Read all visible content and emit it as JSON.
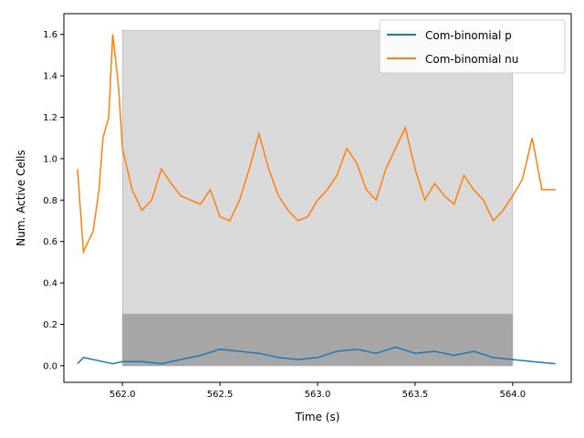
{
  "chart_data": {
    "type": "line",
    "xlabel": "Time (s)",
    "ylabel": "Num. Active Cells",
    "xlim": [
      561.7,
      564.3
    ],
    "ylim": [
      -0.08,
      1.7
    ],
    "xticks": [
      "562.0",
      "562.5",
      "563.0",
      "563.5",
      "564.0"
    ],
    "xtick_values": [
      562.0,
      562.5,
      563.0,
      563.5,
      564.0
    ],
    "yticks": [
      "0.0",
      "0.2",
      "0.4",
      "0.6",
      "0.8",
      "1.0",
      "1.2",
      "1.4",
      "1.6"
    ],
    "ytick_values": [
      0.0,
      0.2,
      0.4,
      0.6,
      0.8,
      1.0,
      1.2,
      1.4,
      1.6
    ],
    "grid": false,
    "legend_position": "top-right",
    "shaded_regions": [
      {
        "x": [
          562.0,
          564.0
        ],
        "y": [
          0.0,
          1.62
        ],
        "color": "#d9d9d9"
      },
      {
        "x": [
          562.0,
          564.0
        ],
        "y": [
          0.0,
          0.25
        ],
        "color": "#a6a6a6"
      }
    ],
    "series": [
      {
        "name": "Com-binomial p",
        "color": "#1f77b4",
        "x": [
          561.77,
          561.8,
          561.85,
          561.9,
          561.95,
          562.0,
          562.1,
          562.2,
          562.3,
          562.4,
          562.5,
          562.6,
          562.7,
          562.8,
          562.9,
          563.0,
          563.1,
          563.2,
          563.3,
          563.4,
          563.5,
          563.6,
          563.7,
          563.8,
          563.9,
          564.0,
          564.1,
          564.22
        ],
        "y": [
          0.01,
          0.04,
          0.03,
          0.02,
          0.01,
          0.02,
          0.02,
          0.01,
          0.03,
          0.05,
          0.08,
          0.07,
          0.06,
          0.04,
          0.03,
          0.04,
          0.07,
          0.08,
          0.06,
          0.09,
          0.06,
          0.07,
          0.05,
          0.07,
          0.04,
          0.03,
          0.02,
          0.01
        ]
      },
      {
        "name": "Com-binomial nu",
        "color": "#ff7f0e",
        "x": [
          561.77,
          561.8,
          561.85,
          561.88,
          561.9,
          561.93,
          561.95,
          561.98,
          562.0,
          562.05,
          562.1,
          562.15,
          562.2,
          562.25,
          562.3,
          562.35,
          562.4,
          562.45,
          562.5,
          562.55,
          562.6,
          562.65,
          562.7,
          562.75,
          562.8,
          562.85,
          562.9,
          562.95,
          563.0,
          563.05,
          563.1,
          563.15,
          563.2,
          563.25,
          563.3,
          563.35,
          563.4,
          563.45,
          563.5,
          563.55,
          563.6,
          563.65,
          563.7,
          563.75,
          563.8,
          563.85,
          563.9,
          563.95,
          564.0,
          564.05,
          564.1,
          564.15,
          564.22
        ],
        "y": [
          0.95,
          0.55,
          0.65,
          0.85,
          1.1,
          1.2,
          1.6,
          1.35,
          1.05,
          0.85,
          0.75,
          0.8,
          0.95,
          0.88,
          0.82,
          0.8,
          0.78,
          0.85,
          0.72,
          0.7,
          0.8,
          0.95,
          1.12,
          0.95,
          0.82,
          0.75,
          0.7,
          0.72,
          0.8,
          0.85,
          0.92,
          1.05,
          0.98,
          0.85,
          0.8,
          0.95,
          1.05,
          1.15,
          0.95,
          0.8,
          0.88,
          0.82,
          0.78,
          0.92,
          0.85,
          0.8,
          0.7,
          0.75,
          0.82,
          0.9,
          1.1,
          0.85,
          0.85
        ]
      }
    ]
  }
}
